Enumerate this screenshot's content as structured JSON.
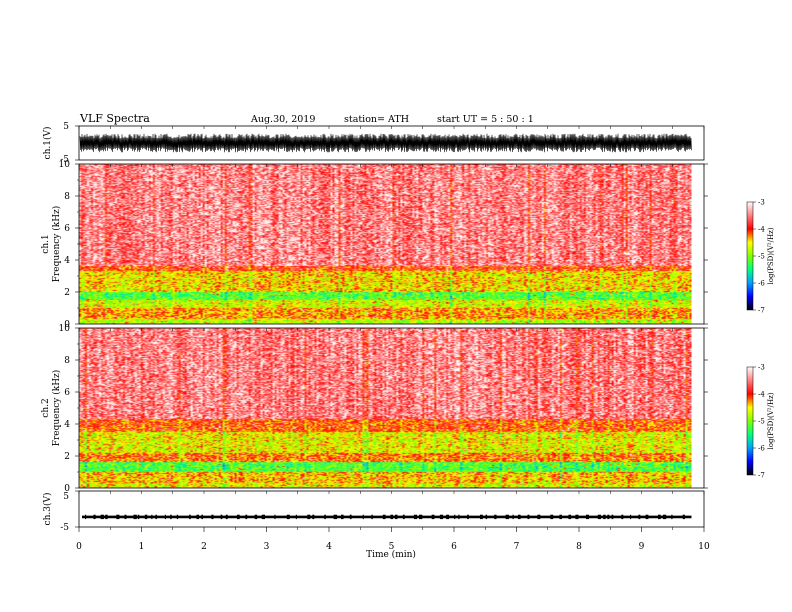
{
  "header": {
    "title": "VLF  Spectra",
    "date": "Aug.30, 2019",
    "station": "station= ATH",
    "start": "start  UT  =    5  : 50 : 1"
  },
  "chart_data": [
    {
      "type": "line",
      "panel": "ch1-waveform",
      "ylabel": "ch.1(V)",
      "ylim": [
        -5,
        5
      ],
      "yticks": [
        "5",
        "-5"
      ],
      "xlim": [
        0,
        10
      ],
      "data_extent_min": 9.8,
      "amplitude_range": [
        -2.5,
        2.5
      ]
    },
    {
      "type": "heatmap",
      "panel": "ch1-spectrogram",
      "ylabel": "ch.1\nFrequency (kHz)",
      "ylabel_lines": [
        "ch.1",
        "Frequency  (kHz)"
      ],
      "ylim": [
        0,
        10
      ],
      "yticks": [
        "0",
        "2",
        "4",
        "6",
        "8",
        "10"
      ],
      "xlim": [
        0,
        10
      ],
      "data_extent_min": 9.8,
      "bands": [
        {
          "f0": 0.0,
          "f1": 0.3,
          "level": -4.8
        },
        {
          "f0": 0.3,
          "f1": 1.0,
          "level": -4.3
        },
        {
          "f0": 1.0,
          "f1": 1.5,
          "level": -4.7
        },
        {
          "f0": 1.5,
          "f1": 2.0,
          "level": -5.2
        },
        {
          "f0": 2.0,
          "f1": 3.3,
          "level": -4.5
        },
        {
          "f0": 3.3,
          "f1": 3.6,
          "level": -4.0
        },
        {
          "f0": 3.6,
          "f1": 10.0,
          "level": -3.5
        }
      ]
    },
    {
      "type": "heatmap",
      "panel": "ch2-spectrogram",
      "ylabel_lines": [
        "ch.2",
        "Frequency  (kHz)"
      ],
      "ylim": [
        0,
        10
      ],
      "yticks": [
        "0",
        "2",
        "4",
        "6",
        "8",
        "10"
      ],
      "xlim": [
        0,
        10
      ],
      "data_extent_min": 9.8,
      "bands": [
        {
          "f0": 0.0,
          "f1": 0.3,
          "level": -4.6
        },
        {
          "f0": 0.3,
          "f1": 1.0,
          "level": -4.4
        },
        {
          "f0": 1.0,
          "f1": 1.6,
          "level": -5.2
        },
        {
          "f0": 1.6,
          "f1": 2.2,
          "level": -4.2
        },
        {
          "f0": 2.2,
          "f1": 3.5,
          "level": -4.6
        },
        {
          "f0": 3.5,
          "f1": 4.3,
          "level": -4.1
        },
        {
          "f0": 4.3,
          "f1": 10.0,
          "level": -3.5
        }
      ]
    },
    {
      "type": "line",
      "panel": "ch3-waveform",
      "ylabel": "ch.3(V)",
      "ylim": [
        -5,
        5
      ],
      "yticks": [
        "5",
        "-5"
      ],
      "xlim": [
        0,
        10
      ],
      "data_extent_min": 9.8,
      "level": -2.2,
      "xlabel": "Time  (min)",
      "xticks": [
        "0",
        "1",
        "2",
        "3",
        "4",
        "5",
        "6",
        "7",
        "8",
        "9",
        "10"
      ]
    }
  ],
  "colorbar": {
    "label": "log(PSD)(V²/Hz)",
    "ticks": [
      "-3",
      "-4",
      "-5",
      "-6",
      "-7"
    ],
    "range": [
      -7,
      -3
    ],
    "stops": [
      {
        "v": -7.0,
        "color": "#000000"
      },
      {
        "v": -6.5,
        "color": "#0000ff"
      },
      {
        "v": -6.0,
        "color": "#00a0ff"
      },
      {
        "v": -5.5,
        "color": "#00ff80"
      },
      {
        "v": -5.0,
        "color": "#80ff00"
      },
      {
        "v": -4.5,
        "color": "#ffff00"
      },
      {
        "v": -4.0,
        "color": "#ff0000"
      },
      {
        "v": -3.5,
        "color": "#ff8080"
      },
      {
        "v": -3.0,
        "color": "#ffffff"
      }
    ]
  }
}
